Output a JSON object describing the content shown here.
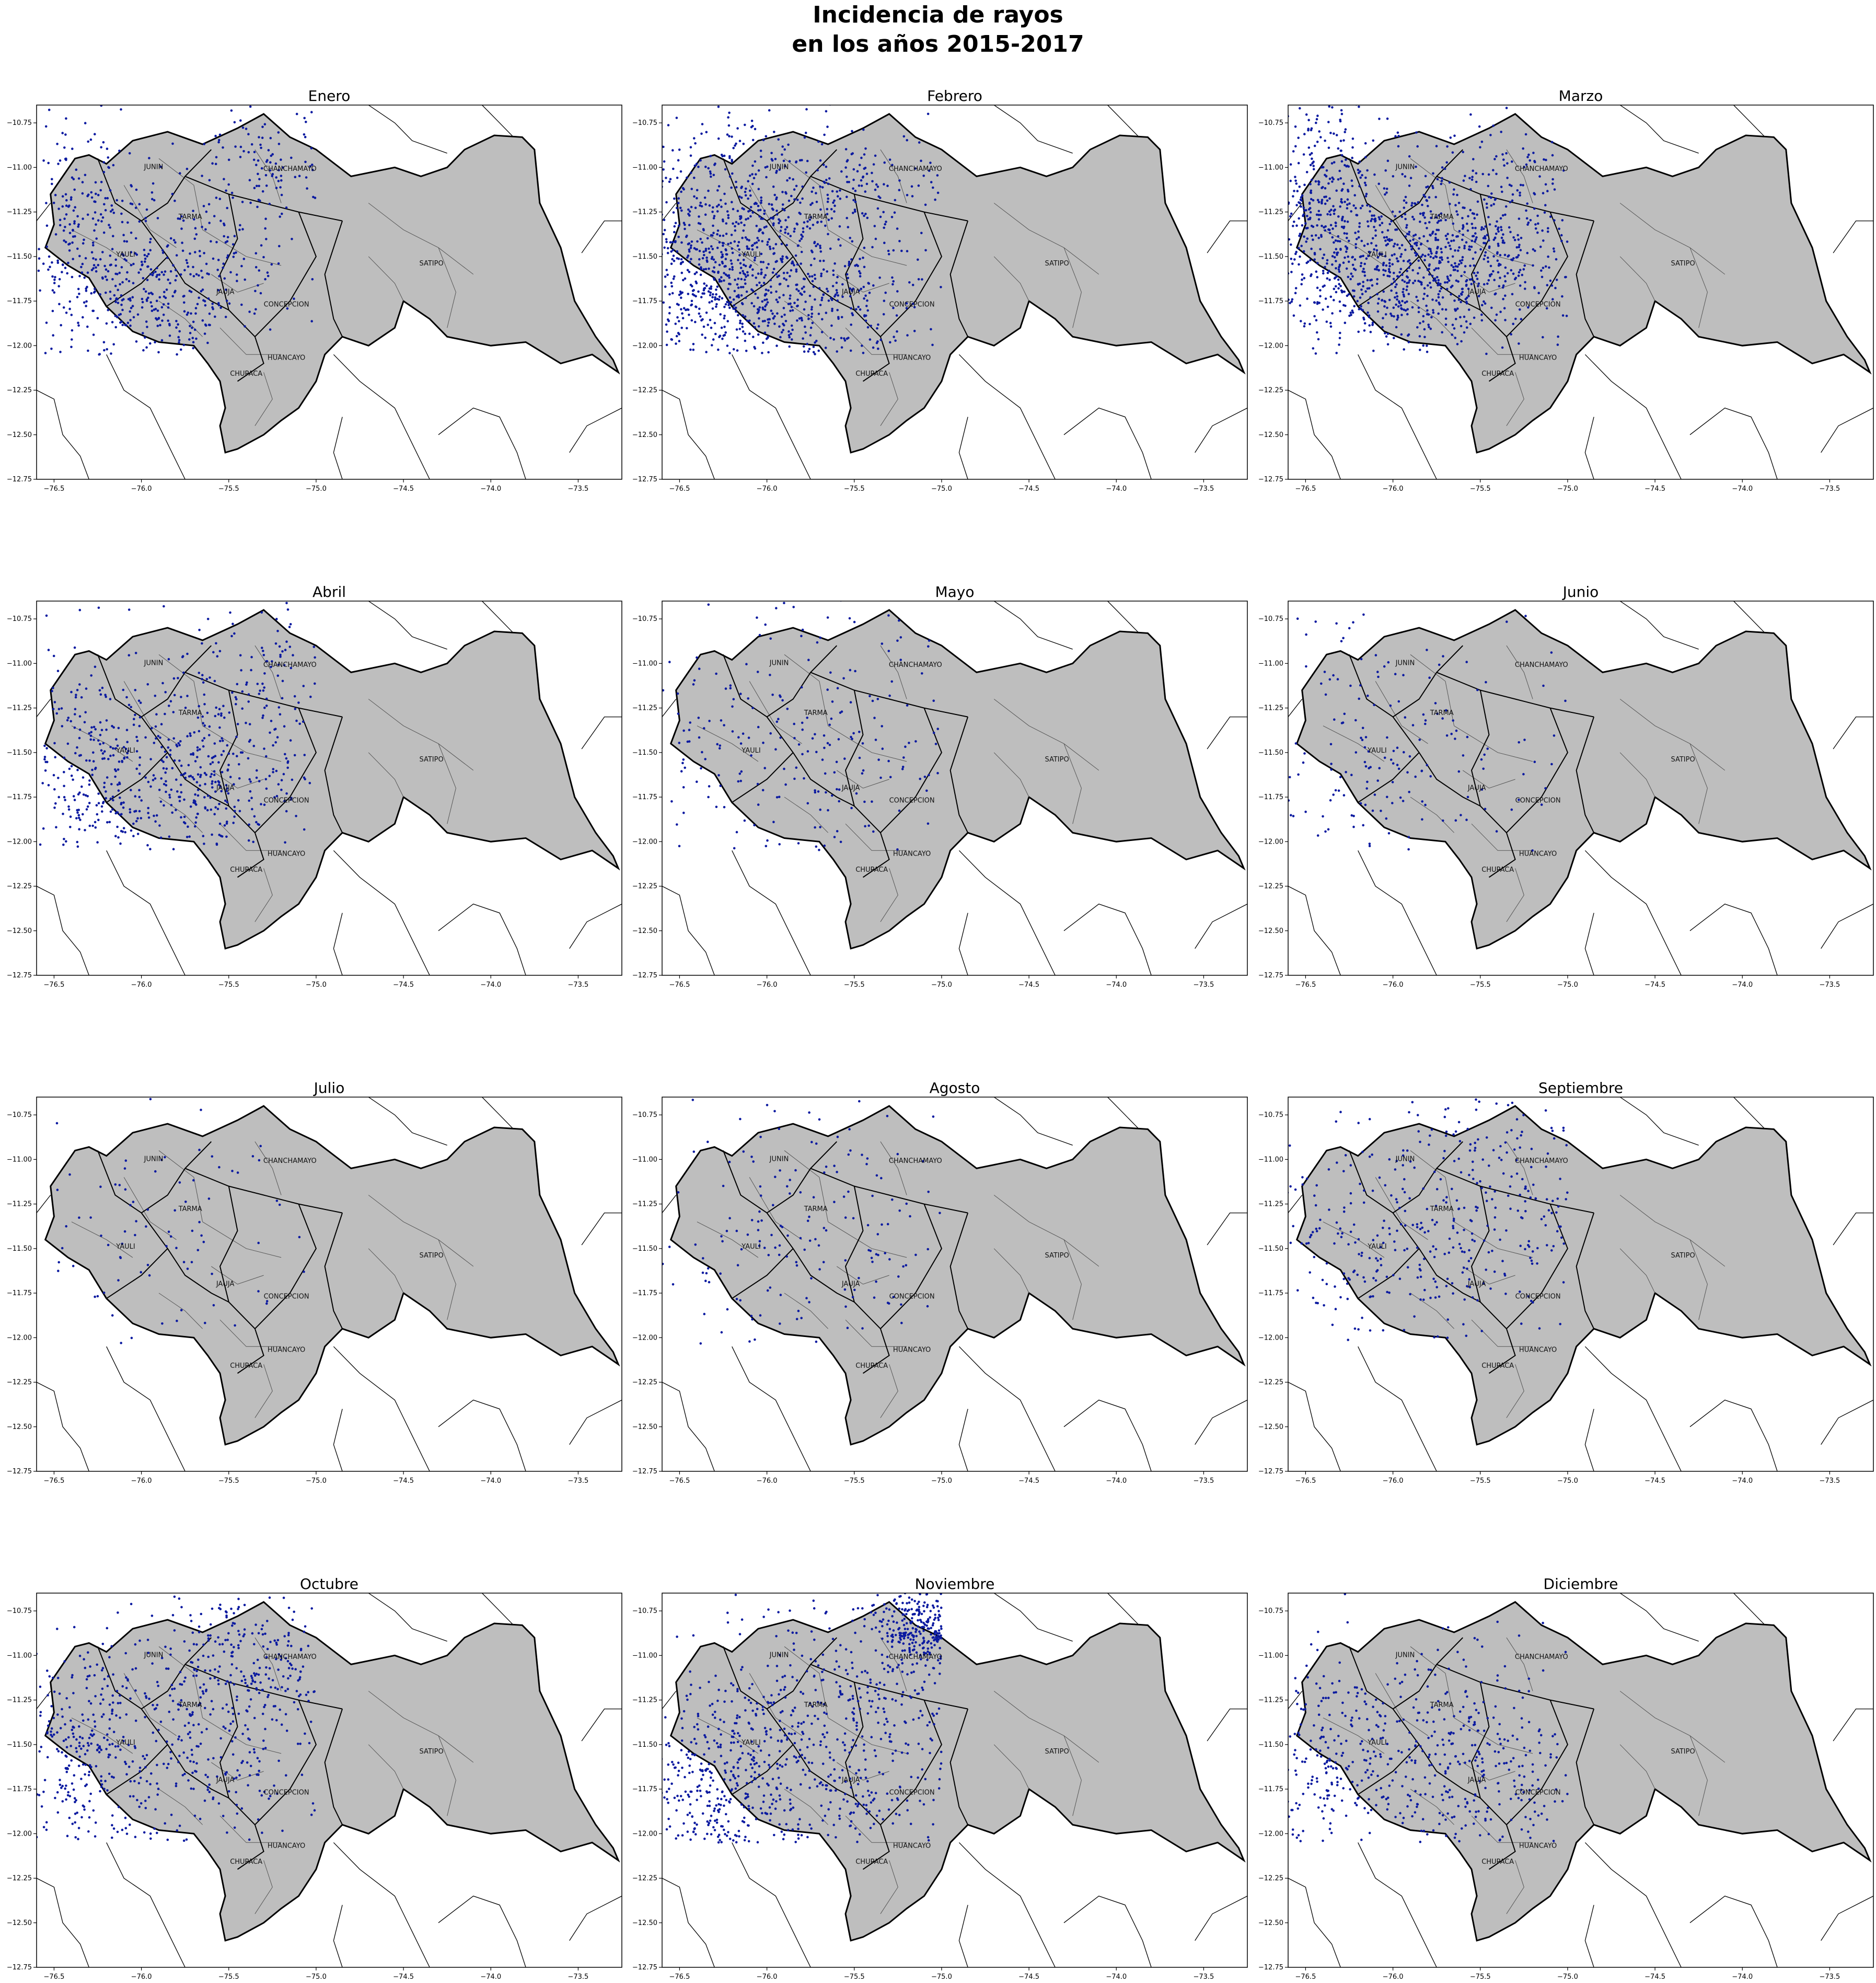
{
  "figure_title": {
    "line1": "Incidencia de rayos",
    "line2": "en los años 2015-2017"
  },
  "map_style": {
    "region_fill": "#bebebe",
    "region_outline": "#000000",
    "province_line": "#000000",
    "district_line": "#555555",
    "strike_color": "#0b1aa0",
    "frame_color": "#000000"
  },
  "chart_data": {
    "type": "scatter",
    "description_units": "longitude (x), latitude (y) in degrees",
    "xlim": [
      -76.6,
      -73.25
    ],
    "ylim": [
      -12.75,
      -10.65
    ],
    "x_ticks": [
      "−76.5",
      "−76.0",
      "−75.5",
      "−75.0",
      "−74.5",
      "−74.0",
      "−73.5"
    ],
    "x_tick_values": [
      -76.5,
      -76.0,
      -75.5,
      -75.0,
      -74.5,
      -74.0,
      -73.5
    ],
    "y_ticks": [
      "−10.75",
      "−11.00",
      "−11.25",
      "−11.50",
      "−11.75",
      "−12.00",
      "−12.25",
      "−12.50",
      "−12.75"
    ],
    "y_tick_values": [
      -10.75,
      -11.0,
      -11.25,
      -11.5,
      -11.75,
      -12.0,
      -12.25,
      -12.5,
      -12.75
    ],
    "place_labels": [
      {
        "name": "JUNIN",
        "lon": -75.93,
        "lat": -11.01
      },
      {
        "name": "CHANCHAMAYO",
        "lon": -75.15,
        "lat": -11.02
      },
      {
        "name": "TARMA",
        "lon": -75.72,
        "lat": -11.29
      },
      {
        "name": "YAULI",
        "lon": -76.09,
        "lat": -11.5
      },
      {
        "name": "SATIPO",
        "lon": -74.34,
        "lat": -11.55
      },
      {
        "name": "JAUJA",
        "lon": -75.52,
        "lat": -11.71
      },
      {
        "name": "CONCEPCION",
        "lon": -75.17,
        "lat": -11.78
      },
      {
        "name": "HUANCAYO",
        "lon": -75.17,
        "lat": -12.08
      },
      {
        "name": "CHUPACA",
        "lon": -75.4,
        "lat": -12.17
      }
    ],
    "panels": [
      {
        "month": "Enero",
        "density": 0.55,
        "clusters": [
          {
            "lon": -75.9,
            "lat": -11.7,
            "sx": 0.35,
            "sy": 0.25,
            "w": 1.0
          },
          {
            "lon": -76.3,
            "lat": -11.3,
            "sx": 0.2,
            "sy": 0.3,
            "w": 0.5
          },
          {
            "lon": -75.3,
            "lat": -11.0,
            "sx": 0.25,
            "sy": 0.2,
            "w": 0.3
          }
        ]
      },
      {
        "month": "Febrero",
        "density": 1.0,
        "clusters": [
          {
            "lon": -75.95,
            "lat": -11.75,
            "sx": 0.4,
            "sy": 0.25,
            "w": 1.0
          },
          {
            "lon": -76.35,
            "lat": -11.4,
            "sx": 0.25,
            "sy": 0.35,
            "w": 0.7
          },
          {
            "lon": -75.6,
            "lat": -11.1,
            "sx": 0.35,
            "sy": 0.2,
            "w": 0.4
          }
        ]
      },
      {
        "month": "Marzo",
        "density": 1.0,
        "clusters": [
          {
            "lon": -75.95,
            "lat": -11.6,
            "sx": 0.35,
            "sy": 0.22,
            "w": 1.0
          },
          {
            "lon": -76.4,
            "lat": -11.2,
            "sx": 0.2,
            "sy": 0.35,
            "w": 0.6
          },
          {
            "lon": -75.4,
            "lat": -11.3,
            "sx": 0.3,
            "sy": 0.3,
            "w": 0.5
          }
        ]
      },
      {
        "month": "Abril",
        "density": 0.5,
        "clusters": [
          {
            "lon": -75.7,
            "lat": -11.7,
            "sx": 0.3,
            "sy": 0.2,
            "w": 1.0
          },
          {
            "lon": -76.3,
            "lat": -11.5,
            "sx": 0.2,
            "sy": 0.3,
            "w": 0.7
          },
          {
            "lon": -75.4,
            "lat": -11.1,
            "sx": 0.25,
            "sy": 0.25,
            "w": 0.4
          }
        ]
      },
      {
        "month": "Mayo",
        "density": 0.2,
        "clusters": [
          {
            "lon": -75.8,
            "lat": -11.5,
            "sx": 0.5,
            "sy": 0.4,
            "w": 1.0
          }
        ]
      },
      {
        "month": "Junio",
        "density": 0.15,
        "clusters": [
          {
            "lon": -76.0,
            "lat": -11.5,
            "sx": 0.45,
            "sy": 0.4,
            "w": 1.0
          }
        ]
      },
      {
        "month": "Julio",
        "density": 0.08,
        "clusters": [
          {
            "lon": -76.0,
            "lat": -11.5,
            "sx": 0.45,
            "sy": 0.4,
            "w": 1.0
          }
        ]
      },
      {
        "month": "Agosto",
        "density": 0.15,
        "clusters": [
          {
            "lon": -75.7,
            "lat": -11.4,
            "sx": 0.5,
            "sy": 0.4,
            "w": 1.0
          }
        ]
      },
      {
        "month": "Septiembre",
        "density": 0.35,
        "clusters": [
          {
            "lon": -75.4,
            "lat": -11.3,
            "sx": 0.4,
            "sy": 0.4,
            "w": 1.0
          },
          {
            "lon": -76.2,
            "lat": -11.5,
            "sx": 0.3,
            "sy": 0.3,
            "w": 0.6
          }
        ]
      },
      {
        "month": "Octubre",
        "density": 0.6,
        "clusters": [
          {
            "lon": -75.8,
            "lat": -11.5,
            "sx": 0.45,
            "sy": 0.35,
            "w": 1.0
          },
          {
            "lon": -76.4,
            "lat": -11.6,
            "sx": 0.2,
            "sy": 0.3,
            "w": 0.5
          },
          {
            "lon": -75.3,
            "lat": -11.0,
            "sx": 0.25,
            "sy": 0.2,
            "w": 0.5
          }
        ]
      },
      {
        "month": "Noviembre",
        "density": 0.95,
        "clusters": [
          {
            "lon": -75.6,
            "lat": -11.5,
            "sx": 0.45,
            "sy": 0.4,
            "w": 1.0
          },
          {
            "lon": -75.1,
            "lat": -10.85,
            "sx": 0.15,
            "sy": 0.12,
            "w": 0.6
          },
          {
            "lon": -76.3,
            "lat": -11.8,
            "sx": 0.25,
            "sy": 0.25,
            "w": 0.6
          }
        ]
      },
      {
        "month": "Diciembre",
        "density": 0.45,
        "clusters": [
          {
            "lon": -75.6,
            "lat": -11.6,
            "sx": 0.4,
            "sy": 0.35,
            "w": 1.0
          },
          {
            "lon": -76.4,
            "lat": -11.6,
            "sx": 0.2,
            "sy": 0.3,
            "w": 0.5
          }
        ]
      }
    ]
  }
}
